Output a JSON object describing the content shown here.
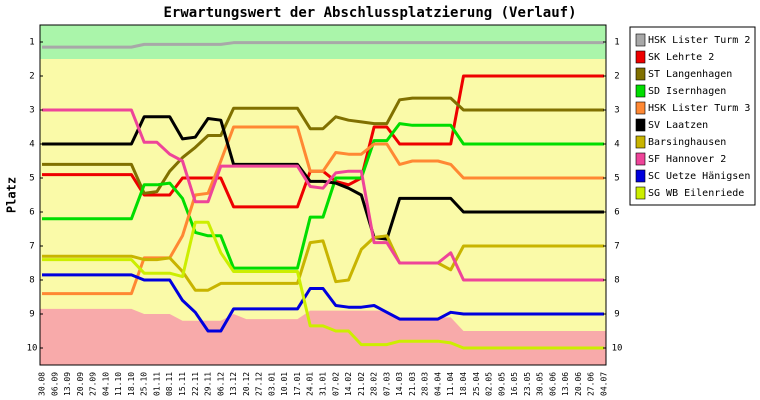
{
  "chart_data": {
    "type": "line",
    "title": "Erwartungswert der Abschlussplatzierung (Verlauf)",
    "y_label": "Platz",
    "categories": [
      "30.08",
      "06.09",
      "13.09",
      "20.09",
      "27.09",
      "04.10",
      "11.10",
      "18.10",
      "25.10",
      "01.11",
      "08.11",
      "15.11",
      "22.11",
      "29.11",
      "06.12",
      "13.12",
      "20.12",
      "27.12",
      "03.01",
      "10.01",
      "17.01",
      "24.01",
      "31.01",
      "07.02",
      "14.02",
      "21.02",
      "28.02",
      "07.03",
      "14.03",
      "21.03",
      "28.03",
      "04.04",
      "11.04",
      "18.04",
      "25.04",
      "02.05",
      "09.05",
      "16.05",
      "23.05",
      "30.05",
      "06.06",
      "13.06",
      "20.06",
      "27.06",
      "04.07"
    ],
    "ylim": [
      0.5,
      10.5
    ],
    "y_reversed": true,
    "yticks": [
      1,
      2,
      3,
      4,
      5,
      6,
      7,
      8,
      9,
      10
    ],
    "upper_zone_bottom": 1.5,
    "lower_zone_top": [
      8.85,
      8.85,
      8.85,
      8.85,
      8.85,
      8.85,
      8.85,
      8.85,
      9.0,
      9.0,
      9.0,
      9.2,
      9.2,
      9.2,
      9.2,
      9.0,
      9.15,
      9.15,
      9.15,
      9.15,
      9.15,
      8.9,
      8.9,
      8.9,
      8.9,
      8.9,
      8.9,
      8.9,
      9.1,
      9.1,
      9.1,
      9.1,
      9.1,
      9.5,
      9.5,
      9.5,
      9.5,
      9.5,
      9.5,
      9.5,
      9.5,
      9.5,
      9.5,
      9.5,
      9.5
    ],
    "series": [
      {
        "name": "HSK Lister Turm 2",
        "color": "#a8a8a8",
        "values": [
          1.15,
          1.15,
          1.15,
          1.15,
          1.15,
          1.15,
          1.15,
          1.15,
          1.07,
          1.07,
          1.07,
          1.07,
          1.07,
          1.07,
          1.07,
          1.02,
          1.02,
          1.02,
          1.02,
          1.02,
          1.02,
          1.02,
          1.02,
          1.02,
          1.02,
          1.02,
          1.02,
          1.02,
          1.02,
          1.02,
          1.02,
          1.02,
          1.02,
          1.02,
          1.02,
          1.02,
          1.02,
          1.02,
          1.02,
          1.02,
          1.02,
          1.02,
          1.02,
          1.02,
          1.02
        ]
      },
      {
        "name": "SK Lehrte 2",
        "color": "#ee0000",
        "values": [
          4.9,
          4.9,
          4.9,
          4.9,
          4.9,
          4.9,
          4.9,
          4.9,
          5.5,
          5.5,
          5.5,
          5.0,
          5.0,
          5.0,
          5.0,
          5.85,
          5.85,
          5.85,
          5.85,
          5.85,
          5.85,
          4.8,
          4.8,
          5.1,
          5.2,
          5.0,
          3.5,
          3.5,
          4.0,
          4.0,
          4.0,
          4.0,
          4.0,
          2.0,
          2.0,
          2.0,
          2.0,
          2.0,
          2.0,
          2.0,
          2.0,
          2.0,
          2.0,
          2.0,
          2.0
        ]
      },
      {
        "name": "ST Langenhagen",
        "color": "#807000",
        "values": [
          4.6,
          4.6,
          4.6,
          4.6,
          4.6,
          4.6,
          4.6,
          4.6,
          5.45,
          5.4,
          4.8,
          4.4,
          4.1,
          3.75,
          3.75,
          2.95,
          2.95,
          2.95,
          2.95,
          2.95,
          2.95,
          3.55,
          3.55,
          3.2,
          3.3,
          3.35,
          3.4,
          3.4,
          2.7,
          2.65,
          2.65,
          2.65,
          2.65,
          3.0,
          3.0,
          3.0,
          3.0,
          3.0,
          3.0,
          3.0,
          3.0,
          3.0,
          3.0,
          3.0,
          3.0
        ]
      },
      {
        "name": "SD Isernhagen",
        "color": "#00dd00",
        "values": [
          6.2,
          6.2,
          6.2,
          6.2,
          6.2,
          6.2,
          6.2,
          6.2,
          5.2,
          5.2,
          5.15,
          5.6,
          6.6,
          6.7,
          6.7,
          7.65,
          7.65,
          7.65,
          7.65,
          7.65,
          7.65,
          6.15,
          6.15,
          5.0,
          5.0,
          5.0,
          3.9,
          3.9,
          3.4,
          3.45,
          3.45,
          3.45,
          3.45,
          4.0,
          4.0,
          4.0,
          4.0,
          4.0,
          4.0,
          4.0,
          4.0,
          4.0,
          4.0,
          4.0,
          4.0
        ]
      },
      {
        "name": "HSK Lister Turm 3",
        "color": "#ff8833",
        "values": [
          8.4,
          8.4,
          8.4,
          8.4,
          8.4,
          8.4,
          8.4,
          8.4,
          7.35,
          7.35,
          7.35,
          6.7,
          5.5,
          5.45,
          4.5,
          3.5,
          3.5,
          3.5,
          3.5,
          3.5,
          3.5,
          4.8,
          4.8,
          4.25,
          4.3,
          4.3,
          4.0,
          4.0,
          4.6,
          4.5,
          4.5,
          4.5,
          4.6,
          5.0,
          5.0,
          5.0,
          5.0,
          5.0,
          5.0,
          5.0,
          5.0,
          5.0,
          5.0,
          5.0,
          5.0
        ]
      },
      {
        "name": "SV Laatzen",
        "color": "#000000",
        "values": [
          4.0,
          4.0,
          4.0,
          4.0,
          4.0,
          4.0,
          4.0,
          4.0,
          3.2,
          3.2,
          3.2,
          3.85,
          3.8,
          3.25,
          3.3,
          4.6,
          4.6,
          4.6,
          4.6,
          4.6,
          4.6,
          5.1,
          5.1,
          5.15,
          5.3,
          5.5,
          6.75,
          6.8,
          5.6,
          5.6,
          5.6,
          5.6,
          5.6,
          6.0,
          6.0,
          6.0,
          6.0,
          6.0,
          6.0,
          6.0,
          6.0,
          6.0,
          6.0,
          6.0,
          6.0
        ]
      },
      {
        "name": "Barsinghausen",
        "color": "#c8b400",
        "values": [
          7.3,
          7.3,
          7.3,
          7.3,
          7.3,
          7.3,
          7.3,
          7.3,
          7.4,
          7.4,
          7.35,
          7.75,
          8.3,
          8.3,
          8.1,
          8.1,
          8.1,
          8.1,
          8.1,
          8.1,
          8.1,
          6.9,
          6.85,
          8.05,
          8.0,
          7.1,
          6.75,
          6.7,
          7.5,
          7.5,
          7.5,
          7.5,
          7.7,
          7.0,
          7.0,
          7.0,
          7.0,
          7.0,
          7.0,
          7.0,
          7.0,
          7.0,
          7.0,
          7.0,
          7.0
        ]
      },
      {
        "name": "SF Hannover 2",
        "color": "#ee4499",
        "values": [
          3.0,
          3.0,
          3.0,
          3.0,
          3.0,
          3.0,
          3.0,
          3.0,
          3.95,
          3.95,
          4.3,
          4.5,
          5.7,
          5.7,
          4.65,
          4.65,
          4.65,
          4.65,
          4.65,
          4.65,
          4.65,
          5.25,
          5.3,
          4.85,
          4.8,
          4.8,
          6.9,
          6.9,
          7.5,
          7.5,
          7.5,
          7.5,
          7.2,
          8.0,
          8.0,
          8.0,
          8.0,
          8.0,
          8.0,
          8.0,
          8.0,
          8.0,
          8.0,
          8.0,
          8.0
        ]
      },
      {
        "name": "SC Uetze Hänigsen",
        "color": "#0000dd",
        "values": [
          7.85,
          7.85,
          7.85,
          7.85,
          7.85,
          7.85,
          7.85,
          7.85,
          8.0,
          8.0,
          8.0,
          8.6,
          8.95,
          9.5,
          9.5,
          8.85,
          8.85,
          8.85,
          8.85,
          8.85,
          8.85,
          8.25,
          8.25,
          8.75,
          8.8,
          8.8,
          8.75,
          8.95,
          9.15,
          9.15,
          9.15,
          9.15,
          8.95,
          9.0,
          9.0,
          9.0,
          9.0,
          9.0,
          9.0,
          9.0,
          9.0,
          9.0,
          9.0,
          9.0,
          9.0
        ]
      },
      {
        "name": "SG WB Eilenriede",
        "color": "#ccee00",
        "values": [
          7.4,
          7.4,
          7.4,
          7.4,
          7.4,
          7.4,
          7.4,
          7.4,
          7.8,
          7.8,
          7.8,
          7.9,
          6.3,
          6.3,
          7.2,
          7.75,
          7.75,
          7.75,
          7.75,
          7.75,
          7.75,
          9.35,
          9.35,
          9.5,
          9.5,
          9.9,
          9.9,
          9.9,
          9.8,
          9.8,
          9.8,
          9.8,
          9.85,
          10.0,
          10.0,
          10.0,
          10.0,
          10.0,
          10.0,
          10.0,
          10.0,
          10.0,
          10.0,
          10.0,
          10.0
        ]
      }
    ],
    "upper_zone_color": "#aaf5aa",
    "middle_zone_color": "#fafaa8",
    "lower_zone_color": "#f8aaaa"
  }
}
